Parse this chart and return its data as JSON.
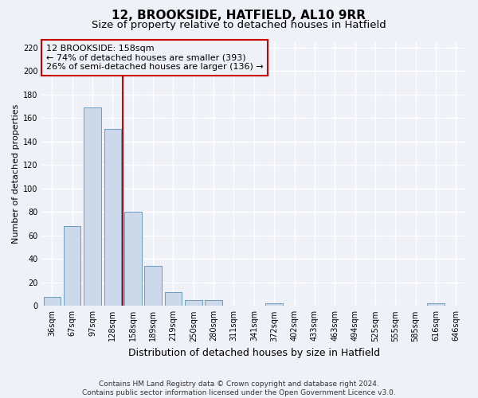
{
  "title": "12, BROOKSIDE, HATFIELD, AL10 9RR",
  "subtitle": "Size of property relative to detached houses in Hatfield",
  "xlabel": "Distribution of detached houses by size in Hatfield",
  "ylabel": "Number of detached properties",
  "categories": [
    "36sqm",
    "67sqm",
    "97sqm",
    "128sqm",
    "158sqm",
    "189sqm",
    "219sqm",
    "250sqm",
    "280sqm",
    "311sqm",
    "341sqm",
    "372sqm",
    "402sqm",
    "433sqm",
    "463sqm",
    "494sqm",
    "525sqm",
    "555sqm",
    "585sqm",
    "616sqm",
    "646sqm"
  ],
  "values": [
    8,
    68,
    169,
    151,
    80,
    34,
    12,
    5,
    5,
    0,
    0,
    2,
    0,
    0,
    0,
    0,
    0,
    0,
    0,
    2,
    0
  ],
  "bar_color": "#ccd9ea",
  "bar_edge_color": "#6a9bbf",
  "vline_x": 3.5,
  "vline_color": "#cc0000",
  "annotation_text": "12 BROOKSIDE: 158sqm\n← 74% of detached houses are smaller (393)\n26% of semi-detached houses are larger (136) →",
  "annotation_box_color": "#cc0000",
  "ylim": [
    0,
    225
  ],
  "yticks": [
    0,
    20,
    40,
    60,
    80,
    100,
    120,
    140,
    160,
    180,
    200,
    220
  ],
  "background_color": "#eef2f8",
  "grid_color": "#ffffff",
  "footnote": "Contains HM Land Registry data © Crown copyright and database right 2024.\nContains public sector information licensed under the Open Government Licence v3.0.",
  "title_fontsize": 11,
  "subtitle_fontsize": 9.5,
  "xlabel_fontsize": 9,
  "ylabel_fontsize": 8,
  "tick_fontsize": 7,
  "annotation_fontsize": 8,
  "footnote_fontsize": 6.5
}
